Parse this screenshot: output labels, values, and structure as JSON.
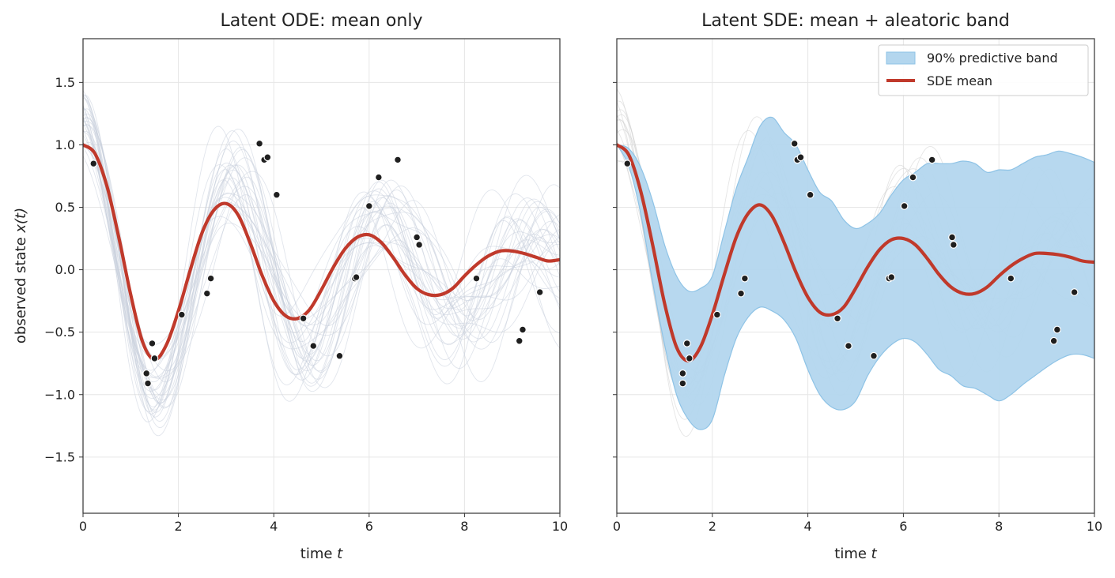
{
  "colors": {
    "mean": "#c0392b",
    "band_fill": "#b3d6ee",
    "band_edge": "#8ec3e6",
    "sample": "#c8d0dc",
    "sample_right": "#d0d0d0",
    "point": "#1f1f1f",
    "grid": "#e6e6e6",
    "frame": "#333333"
  },
  "chart_data": [
    {
      "type": "line",
      "title": "Latent ODE: mean only",
      "xlabel": "time",
      "xlabel_var": "t",
      "ylabel": "observed state",
      "ylabel_var": "x(t)",
      "xlim": [
        0,
        10
      ],
      "ylim": [
        -1.95,
        1.85
      ],
      "xticks": [
        0,
        2,
        4,
        6,
        8,
        10
      ],
      "xtick_labels": [
        "0",
        "2",
        "4",
        "6",
        "8",
        "10"
      ],
      "yticks": [
        -1.5,
        -1.0,
        -0.5,
        0.0,
        0.5,
        1.0,
        1.5
      ],
      "ytick_labels": [
        "−1.5",
        "−1.0",
        "−0.5",
        "0.0",
        "0.5",
        "1.0",
        "1.5"
      ],
      "grid": true,
      "series": [
        {
          "role": "mean",
          "x": [
            0,
            0.25,
            0.5,
            0.75,
            1.0,
            1.25,
            1.5,
            1.75,
            2.0,
            2.25,
            2.5,
            2.75,
            3.0,
            3.25,
            3.5,
            3.75,
            4.0,
            4.25,
            4.5,
            4.75,
            5.0,
            5.25,
            5.5,
            5.75,
            6.0,
            6.25,
            6.5,
            6.75,
            7.0,
            7.25,
            7.5,
            7.75,
            8.0,
            8.25,
            8.5,
            8.75,
            9.0,
            9.25,
            9.5,
            9.75,
            10.0
          ],
          "y": [
            1.0,
            0.93,
            0.67,
            0.26,
            -0.2,
            -0.58,
            -0.72,
            -0.6,
            -0.33,
            0.0,
            0.3,
            0.48,
            0.53,
            0.44,
            0.22,
            -0.04,
            -0.25,
            -0.37,
            -0.39,
            -0.32,
            -0.16,
            0.02,
            0.17,
            0.26,
            0.28,
            0.22,
            0.1,
            -0.04,
            -0.15,
            -0.2,
            -0.2,
            -0.15,
            -0.05,
            0.04,
            0.11,
            0.15,
            0.15,
            0.13,
            0.1,
            0.07,
            0.08
          ]
        }
      ],
      "observations": {
        "x": [
          0.22,
          1.33,
          1.36,
          1.45,
          1.5,
          2.07,
          2.6,
          2.68,
          3.7,
          3.8,
          3.87,
          4.06,
          4.62,
          4.83,
          5.38,
          5.7,
          5.73,
          6.0,
          6.2,
          6.6,
          7.0,
          7.05,
          8.25,
          9.15,
          9.22,
          9.58
        ],
        "y": [
          0.85,
          -0.83,
          -0.91,
          -0.59,
          -0.71,
          -0.36,
          -0.19,
          -0.07,
          1.01,
          0.88,
          0.9,
          0.6,
          -0.39,
          -0.61,
          -0.69,
          -0.07,
          -0.06,
          0.51,
          0.74,
          0.88,
          0.26,
          0.2,
          -0.07,
          -0.57,
          -0.48,
          -0.18
        ]
      }
    },
    {
      "type": "area",
      "title": "Latent SDE: mean + aleatoric band",
      "xlabel": "time",
      "xlabel_var": "t",
      "xlim": [
        0,
        10
      ],
      "ylim": [
        -1.95,
        1.85
      ],
      "xticks": [
        0,
        2,
        4,
        6,
        8,
        10
      ],
      "xtick_labels": [
        "0",
        "2",
        "4",
        "6",
        "8",
        "10"
      ],
      "yticks": [
        -1.5,
        -1.0,
        -0.5,
        0.0,
        0.5,
        1.0,
        1.5
      ],
      "grid": true,
      "legend_position": "top-right",
      "legend": [
        {
          "label": "90% predictive band",
          "kind": "band"
        },
        {
          "label": "SDE mean",
          "kind": "line"
        }
      ],
      "band": {
        "x": [
          0,
          0.25,
          0.5,
          0.75,
          1.0,
          1.25,
          1.5,
          1.75,
          2.0,
          2.25,
          2.5,
          2.75,
          3.0,
          3.25,
          3.5,
          3.75,
          4.0,
          4.25,
          4.5,
          4.75,
          5.0,
          5.25,
          5.5,
          5.75,
          6.0,
          6.25,
          6.5,
          6.75,
          7.0,
          7.25,
          7.5,
          7.75,
          8.0,
          8.25,
          8.5,
          8.75,
          9.0,
          9.25,
          9.5,
          9.75,
          10.0
        ],
        "upper": [
          1.0,
          0.97,
          0.82,
          0.55,
          0.2,
          -0.05,
          -0.17,
          -0.15,
          -0.05,
          0.3,
          0.65,
          0.9,
          1.15,
          1.22,
          1.1,
          1.0,
          0.8,
          0.62,
          0.55,
          0.4,
          0.33,
          0.37,
          0.45,
          0.6,
          0.72,
          0.78,
          0.85,
          0.85,
          0.85,
          0.87,
          0.85,
          0.78,
          0.8,
          0.8,
          0.85,
          0.9,
          0.92,
          0.95,
          0.93,
          0.9,
          0.86
        ],
        "lower": [
          1.0,
          0.83,
          0.45,
          -0.1,
          -0.6,
          -1.0,
          -1.2,
          -1.28,
          -1.2,
          -0.85,
          -0.55,
          -0.38,
          -0.3,
          -0.33,
          -0.4,
          -0.55,
          -0.8,
          -1.0,
          -1.1,
          -1.12,
          -1.05,
          -0.85,
          -0.7,
          -0.6,
          -0.55,
          -0.58,
          -0.68,
          -0.8,
          -0.85,
          -0.93,
          -0.95,
          -1.0,
          -1.05,
          -1.0,
          -0.92,
          -0.85,
          -0.78,
          -0.72,
          -0.68,
          -0.68,
          -0.71
        ]
      },
      "series": [
        {
          "name": "SDE mean",
          "x": [
            0,
            0.25,
            0.5,
            0.75,
            1.0,
            1.25,
            1.5,
            1.75,
            2.0,
            2.25,
            2.5,
            2.75,
            3.0,
            3.25,
            3.5,
            3.75,
            4.0,
            4.25,
            4.5,
            4.75,
            5.0,
            5.25,
            5.5,
            5.75,
            6.0,
            6.25,
            6.5,
            6.75,
            7.0,
            7.25,
            7.5,
            7.75,
            8.0,
            8.25,
            8.5,
            8.75,
            9.0,
            9.25,
            9.5,
            9.75,
            10.0
          ],
          "y": [
            1.0,
            0.92,
            0.63,
            0.2,
            -0.27,
            -0.62,
            -0.73,
            -0.62,
            -0.36,
            -0.04,
            0.26,
            0.45,
            0.52,
            0.43,
            0.22,
            -0.02,
            -0.22,
            -0.34,
            -0.36,
            -0.3,
            -0.15,
            0.02,
            0.16,
            0.24,
            0.25,
            0.2,
            0.09,
            -0.04,
            -0.14,
            -0.19,
            -0.19,
            -0.14,
            -0.05,
            0.03,
            0.09,
            0.13,
            0.13,
            0.12,
            0.1,
            0.07,
            0.06
          ]
        }
      ],
      "observations": {
        "x": [
          0.22,
          1.38,
          1.38,
          1.47,
          1.52,
          2.1,
          2.6,
          2.68,
          3.72,
          3.78,
          3.85,
          4.05,
          4.62,
          4.85,
          5.38,
          5.7,
          5.75,
          6.02,
          6.2,
          6.6,
          7.02,
          7.05,
          8.25,
          9.15,
          9.22,
          9.58
        ],
        "y": [
          0.85,
          -0.83,
          -0.91,
          -0.59,
          -0.71,
          -0.36,
          -0.19,
          -0.07,
          1.01,
          0.88,
          0.9,
          0.6,
          -0.39,
          -0.61,
          -0.69,
          -0.07,
          -0.06,
          0.51,
          0.74,
          0.88,
          0.26,
          0.2,
          -0.07,
          -0.57,
          -0.48,
          -0.18
        ]
      }
    }
  ]
}
